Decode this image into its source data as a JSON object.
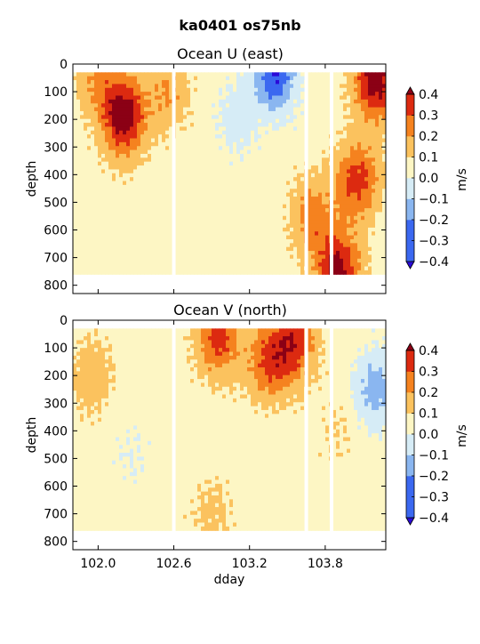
{
  "figure": {
    "suptitle": "ka0401 os75nb"
  },
  "chart_data": [
    {
      "type": "heatmap",
      "title": "Ocean U (east)",
      "ylabel": "depth",
      "xlabel": "",
      "xlim": [
        101.8,
        103.28
      ],
      "ylim": [
        830,
        0
      ],
      "xticks": [],
      "xtick_labels": [],
      "yticks": [
        0,
        100,
        200,
        300,
        400,
        500,
        600,
        700,
        800
      ],
      "ytick_labels": [
        "0",
        "100",
        "200",
        "300",
        "400",
        "500",
        "600",
        "700",
        "800"
      ],
      "colorbar": {
        "label": "m/s",
        "levels": [
          -0.4,
          -0.3,
          -0.2,
          -0.1,
          0.0,
          0.1,
          0.2,
          0.3,
          0.4
        ],
        "tick_labels": [
          "−0.4",
          "−0.3",
          "−0.2",
          "−0.1",
          "0.0",
          "0.1",
          "0.2",
          "0.3",
          "0.4"
        ],
        "colors": [
          "#2a0ad8",
          "#3b68f0",
          "#8ab6f0",
          "#d6ecf6",
          "#fdf6c4",
          "#fbc25e",
          "#f5821f",
          "#dc2a10",
          "#8b0015"
        ]
      },
      "depth_range": [
        30,
        760
      ],
      "gaps": [
        102.6,
        103.65,
        103.85
      ],
      "features": [
        {
          "x": 102.2,
          "depth": 190,
          "value": 0.42
        },
        {
          "x": 102.0,
          "depth": 50,
          "value": 0.15
        },
        {
          "x": 102.55,
          "depth": 100,
          "value": 0.15
        },
        {
          "x": 103.1,
          "depth": 200,
          "value": -0.1
        },
        {
          "x": 103.4,
          "depth": 30,
          "value": -0.35
        },
        {
          "x": 103.7,
          "depth": 550,
          "value": 0.2
        },
        {
          "x": 104.05,
          "depth": 420,
          "value": 0.3
        },
        {
          "x": 104.2,
          "depth": 60,
          "value": 0.42
        },
        {
          "x": 103.9,
          "depth": 750,
          "value": 0.4
        }
      ]
    },
    {
      "type": "heatmap",
      "title": "Ocean V (north)",
      "ylabel": "depth",
      "xlabel": "dday",
      "xlim": [
        101.8,
        104.28
      ],
      "ylim": [
        830,
        0
      ],
      "xticks": [
        102.0,
        102.6,
        103.2,
        103.8
      ],
      "xtick_labels": [
        "102.0",
        "102.6",
        "103.2",
        "103.8"
      ],
      "yticks": [
        0,
        100,
        200,
        300,
        400,
        500,
        600,
        700,
        800
      ],
      "ytick_labels": [
        "0",
        "100",
        "200",
        "300",
        "400",
        "500",
        "600",
        "700",
        "800"
      ],
      "colorbar": {
        "label": "m/s",
        "levels": [
          -0.4,
          -0.3,
          -0.2,
          -0.1,
          0.0,
          0.1,
          0.2,
          0.3,
          0.4
        ],
        "tick_labels": [
          "−0.4",
          "−0.3",
          "−0.2",
          "−0.1",
          "0.0",
          "0.1",
          "0.2",
          "0.3",
          "0.4"
        ],
        "colors": [
          "#2a0ad8",
          "#3b68f0",
          "#8ab6f0",
          "#d6ecf6",
          "#fdf6c4",
          "#fbc25e",
          "#f5821f",
          "#dc2a10",
          "#8b0015"
        ]
      },
      "depth_range": [
        30,
        760
      ],
      "gaps": [
        102.6,
        103.65,
        103.85
      ],
      "features": [
        {
          "x": 101.95,
          "depth": 200,
          "value": 0.12
        },
        {
          "x": 102.25,
          "depth": 480,
          "value": -0.05
        },
        {
          "x": 102.95,
          "depth": 60,
          "value": 0.3
        },
        {
          "x": 103.35,
          "depth": 150,
          "value": 0.25
        },
        {
          "x": 103.55,
          "depth": 80,
          "value": 0.3
        },
        {
          "x": 103.9,
          "depth": 400,
          "value": 0.05
        },
        {
          "x": 104.2,
          "depth": 250,
          "value": -0.2
        },
        {
          "x": 102.9,
          "depth": 700,
          "value": 0.08
        }
      ]
    }
  ]
}
